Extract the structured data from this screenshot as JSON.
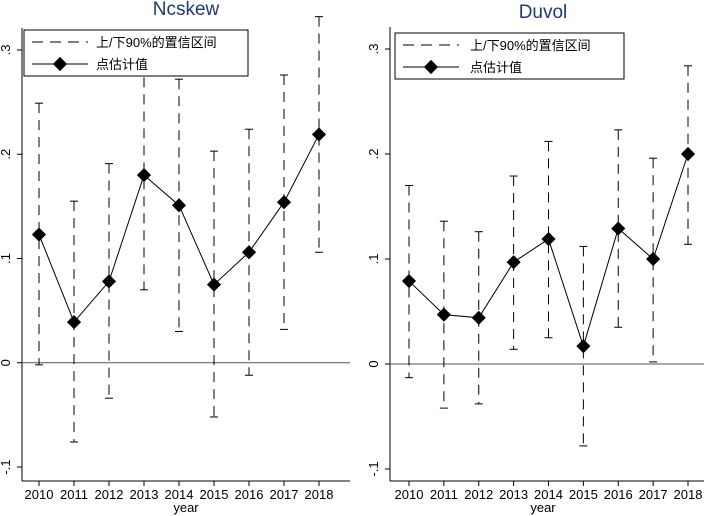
{
  "chart_data": [
    {
      "type": "line",
      "title": "Ncskew",
      "xlabel": "year",
      "ylabel": "",
      "x": [
        2010,
        2011,
        2012,
        2013,
        2014,
        2015,
        2016,
        2017,
        2018
      ],
      "ylim": [
        -0.1,
        0.3
      ],
      "yticks": [
        -0.1,
        0,
        0.1,
        0.2,
        0.3
      ],
      "ytick_labels": [
        "-.1",
        "0",
        ".1",
        ".2",
        ".3"
      ],
      "xtick_labels": [
        "2010",
        "2011",
        "2012",
        "2013",
        "2014",
        "2015",
        "2016",
        "2017",
        "2018"
      ],
      "grid": false,
      "zero_line": true,
      "legend_position": "top-left",
      "series": [
        {
          "name": "上/下90%的置信区间",
          "kind": "ci",
          "lower": [
            -0.002,
            -0.076,
            -0.034,
            0.07,
            0.03,
            -0.052,
            -0.012,
            0.032,
            0.106
          ],
          "upper": [
            0.249,
            0.155,
            0.191,
            0.29,
            0.272,
            0.203,
            0.224,
            0.276,
            0.332
          ]
        },
        {
          "name": "点估计值",
          "kind": "point",
          "values": [
            0.123,
            0.039,
            0.078,
            0.18,
            0.151,
            0.075,
            0.106,
            0.154,
            0.219
          ]
        }
      ]
    },
    {
      "type": "line",
      "title": "Duvol",
      "xlabel": "year",
      "ylabel": "",
      "x": [
        2010,
        2011,
        2012,
        2013,
        2014,
        2015,
        2016,
        2017,
        2018
      ],
      "ylim": [
        -0.1,
        0.3
      ],
      "yticks": [
        -0.1,
        0,
        0.1,
        0.2,
        0.3
      ],
      "ytick_labels": [
        "-.1",
        "0",
        ".1",
        ".2",
        ".3"
      ],
      "xtick_labels": [
        "2010",
        "2011",
        "2012",
        "2013",
        "2014",
        "2015",
        "2016",
        "2017",
        "2018"
      ],
      "grid": false,
      "zero_line": true,
      "legend_position": "top-left",
      "series": [
        {
          "name": "上/下90%的置信区间",
          "kind": "ci",
          "lower": [
            -0.013,
            -0.042,
            -0.038,
            0.014,
            0.025,
            -0.078,
            0.035,
            0.002,
            0.114
          ],
          "upper": [
            0.17,
            0.136,
            0.126,
            0.179,
            0.212,
            0.112,
            0.223,
            0.196,
            0.284
          ]
        },
        {
          "name": "点估计值",
          "kind": "point",
          "values": [
            0.079,
            0.047,
            0.044,
            0.097,
            0.119,
            0.017,
            0.129,
            0.1,
            0.2
          ]
        }
      ]
    }
  ]
}
